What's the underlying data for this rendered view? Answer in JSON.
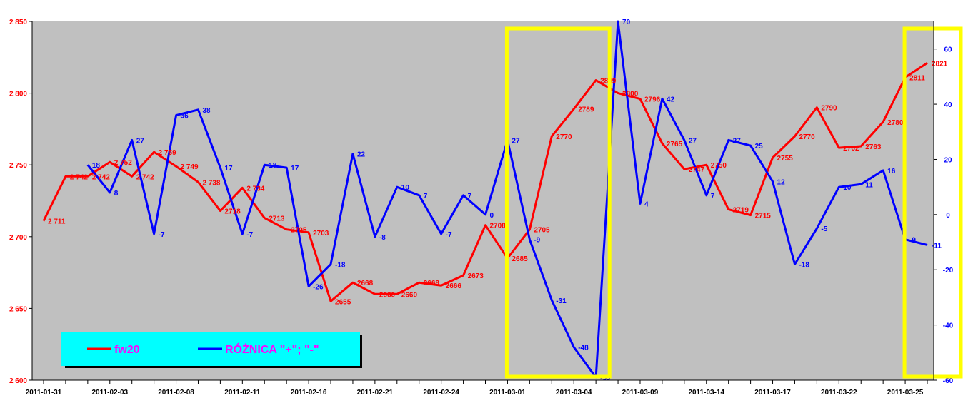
{
  "chart_data": {
    "type": "line",
    "x": [
      "2011-01-31",
      "2011-02-01",
      "2011-02-02",
      "2011-02-03",
      "2011-02-04",
      "2011-02-07",
      "2011-02-08",
      "2011-02-09",
      "2011-02-10",
      "2011-02-11",
      "2011-02-14",
      "2011-02-15",
      "2011-02-16",
      "2011-02-17",
      "2011-02-18",
      "2011-02-21",
      "2011-02-22",
      "2011-02-23",
      "2011-02-24",
      "2011-02-25",
      "2011-02-28",
      "2011-03-01",
      "2011-03-02",
      "2011-03-03",
      "2011-03-04",
      "2011-03-07",
      "2011-03-08",
      "2011-03-09",
      "2011-03-10",
      "2011-03-11",
      "2011-03-14",
      "2011-03-15",
      "2011-03-16",
      "2011-03-17",
      "2011-03-18",
      "2011-03-21",
      "2011-03-22",
      "2011-03-23",
      "2011-03-24",
      "2011-03-25",
      "2011-03-28"
    ],
    "x_ticks": [
      "2011-01-31",
      "2011-02-03",
      "2011-02-08",
      "2011-02-11",
      "2011-02-16",
      "2011-02-21",
      "2011-02-24",
      "2011-03-01",
      "2011-03-04",
      "2011-03-09",
      "2011-03-14",
      "2011-03-17",
      "2011-03-22",
      "2011-03-25"
    ],
    "ylim": [
      2600,
      2850
    ],
    "y_ticks": [
      "2 600",
      "2 650",
      "2 700",
      "2 750",
      "2 800",
      "2 850"
    ],
    "y2lim": [
      -60,
      70
    ],
    "y2_ticks": [
      "-60",
      "-40",
      "-20",
      "0",
      "20",
      "40",
      "60"
    ],
    "background_color": "#C0C0C0",
    "legend_position": "bottom-left",
    "series": [
      {
        "name": "fw20",
        "axis": "left",
        "color": "#FF0000",
        "values": [
          2711,
          2742,
          2742,
          2752,
          2742,
          2759,
          2749,
          2738,
          2718,
          2734,
          2713,
          2705,
          2703,
          2655,
          2668,
          2660,
          2660,
          2668,
          2666,
          2673,
          2708,
          2685,
          2705,
          2770,
          2789,
          2809,
          2800,
          2796,
          2765,
          2747,
          2750,
          2719,
          2715,
          2755,
          2770,
          2790,
          2762,
          2763,
          2780,
          2811,
          2821
        ],
        "labels": [
          "2 711",
          "2 742",
          "2 742",
          "2 752",
          "2 742",
          "2 759",
          "2 749",
          "2 738",
          "2718",
          "2 734",
          "2713",
          "2705",
          "2703",
          "2655",
          "2668",
          "2660",
          "2660",
          "2668",
          "2666",
          "2673",
          "2708",
          "2685",
          "2705",
          "2770",
          "2789",
          "2809",
          "2800",
          "2796",
          "2765",
          "2747",
          "2750",
          "2719",
          "2715",
          "2755",
          "2770",
          "2790",
          "2762",
          "2763",
          "2780",
          "2811",
          "2821"
        ]
      },
      {
        "name": "RÓŻNICA \"+\"; \"-\"",
        "axis": "right",
        "color": "#0000FF",
        "values": [
          null,
          null,
          18,
          8,
          27,
          -7,
          36,
          38,
          17,
          -7,
          18,
          17,
          -26,
          -18,
          22,
          -8,
          10,
          7,
          -7,
          7,
          0,
          27,
          -9,
          -31,
          -48,
          -59,
          70,
          4,
          42,
          27,
          7,
          27,
          25,
          12,
          -18,
          -5,
          10,
          11,
          16,
          -9,
          -11
        ],
        "labels": [
          "",
          "",
          "18",
          "8",
          "27",
          "-7",
          "36",
          "38",
          "17",
          "-7",
          "18",
          "17",
          "-26",
          "-18",
          "22",
          "-8",
          "10",
          "7",
          "-7",
          "7",
          "0",
          "27",
          "-9",
          "-31",
          "-48",
          "-59",
          "70",
          "4",
          "42",
          "27",
          "7",
          "27",
          "25",
          "12",
          "-18",
          "-5",
          "10",
          "11",
          "16",
          "-9",
          "-11"
        ]
      }
    ],
    "highlights": [
      {
        "from": "2011-03-01",
        "to": "2011-03-04",
        "color": "#FFFF00"
      },
      {
        "from": "2011-03-25",
        "to": "2011-03-28",
        "color": "#FFFF00"
      }
    ]
  },
  "legend": {
    "items": [
      {
        "label": "fw20",
        "color": "#FF0000",
        "text_color": "#FF00FF"
      },
      {
        "label": "RÓŻNICA \"+\"; \"-\"",
        "color": "#0000FF",
        "text_color": "#FF00FF"
      }
    ],
    "background": "#00FFFF"
  }
}
